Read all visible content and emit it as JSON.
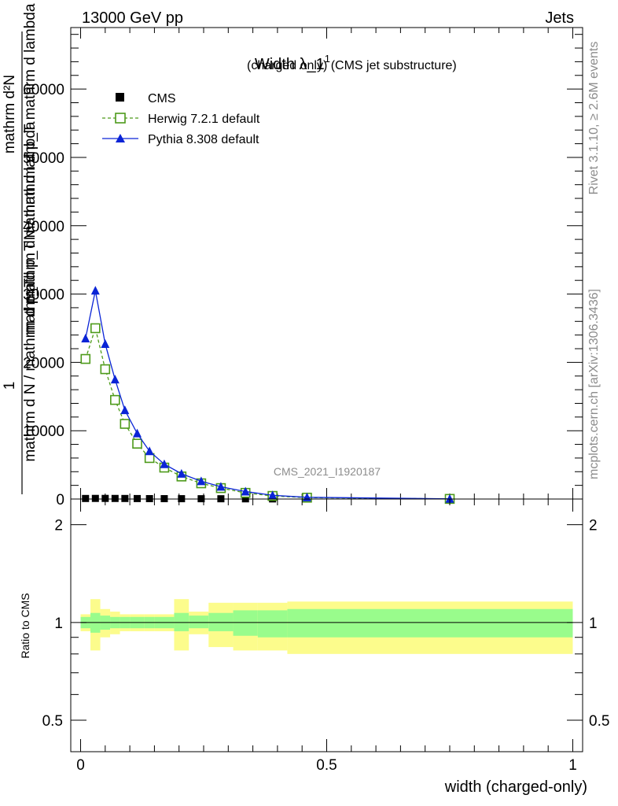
{
  "header": {
    "energy_label": "13000 GeV pp",
    "process_label": "Jets"
  },
  "side_labels": {
    "rivet": "Rivet 3.1.10, ≥ 2.6M events",
    "mcplots": "mcplots.cern.ch [arXiv:1306.3436]"
  },
  "chart_data": [
    {
      "type": "line",
      "title": "Width λ_1",
      "title_superscript": "1",
      "subtitle": "(charged only) (CMS jet substructure)",
      "watermark": "CMS_2021_I1920187",
      "ylabel_fraction_numerator": "1",
      "ylabel_lines": [
        "mathrm dN / mathrm d p_T mathrm d lambda",
        "mathrm d N / mathrm d p_T"
      ],
      "ylabel_raw_top": "mathrm d²N",
      "ylabel_raw_mid": "mathrm d p_T mathrm d lambda",
      "ylabel_raw_bottom": "mathrm d N / mathrm d p_T",
      "xlim": [
        -0.02,
        1.02
      ],
      "ylim": [
        0,
        69000
      ],
      "yticks": [
        0,
        10000,
        20000,
        30000,
        40000,
        50000,
        60000
      ],
      "ytick_labels": [
        "0",
        "10000",
        "20000",
        "30000",
        "40000",
        "50000",
        "60000"
      ],
      "legend_position": "top-left",
      "legend": [
        "CMS",
        "Herwig 7.2.1 default",
        "Pythia 8.308 default"
      ],
      "series": [
        {
          "name": "CMS",
          "color": "#000000",
          "marker": "square",
          "x": [
            0.01,
            0.03,
            0.05,
            0.07,
            0.09,
            0.115,
            0.14,
            0.17,
            0.205,
            0.245,
            0.285,
            0.335,
            0.39,
            0.46,
            0.75
          ],
          "y": [
            80,
            90,
            90,
            85,
            80,
            70,
            60,
            55,
            50,
            45,
            40,
            30,
            20,
            10,
            2
          ]
        },
        {
          "name": "Herwig 7.2.1 default",
          "color": "#4d9a1a",
          "marker": "open-square",
          "dashed": true,
          "x": [
            0.01,
            0.03,
            0.05,
            0.07,
            0.09,
            0.115,
            0.14,
            0.17,
            0.205,
            0.245,
            0.285,
            0.335,
            0.39,
            0.46,
            0.75
          ],
          "y": [
            20500,
            25000,
            19000,
            14500,
            11000,
            8100,
            6000,
            4600,
            3300,
            2300,
            1600,
            900,
            450,
            200,
            20
          ]
        },
        {
          "name": "Pythia 8.308 default",
          "color": "#0a24d6",
          "marker": "filled-triangle",
          "dashed": false,
          "x": [
            0.01,
            0.03,
            0.05,
            0.07,
            0.09,
            0.115,
            0.14,
            0.17,
            0.205,
            0.245,
            0.285,
            0.335,
            0.39,
            0.46,
            0.75
          ],
          "y": [
            23500,
            30500,
            22700,
            17500,
            13000,
            9600,
            7000,
            5100,
            3700,
            2600,
            1800,
            1100,
            550,
            250,
            30
          ]
        }
      ]
    },
    {
      "type": "area",
      "ylabel": "Ratio to CMS",
      "xlabel": "width (charged-only)",
      "xlim": [
        -0.02,
        1.02
      ],
      "ylim": [
        0.4,
        2.4
      ],
      "yticks": [
        0.5,
        1,
        2
      ],
      "ytick_labels": [
        "0.5",
        "1",
        "2"
      ],
      "xticks": [
        0,
        0.5,
        1
      ],
      "xtick_labels": [
        "0",
        "0.5",
        "1"
      ],
      "reference_line": 1,
      "bands": {
        "bin_edges": [
          0,
          0.02,
          0.04,
          0.06,
          0.08,
          0.1,
          0.13,
          0.15,
          0.19,
          0.22,
          0.26,
          0.31,
          0.36,
          0.42,
          0.5,
          1.0
        ],
        "stat_lo": [
          0.96,
          0.93,
          0.95,
          0.96,
          0.96,
          0.96,
          0.96,
          0.96,
          0.94,
          0.96,
          0.94,
          0.91,
          0.9,
          0.9,
          0.9
        ],
        "stat_hi": [
          1.04,
          1.07,
          1.05,
          1.04,
          1.04,
          1.04,
          1.04,
          1.04,
          1.07,
          1.05,
          1.07,
          1.09,
          1.09,
          1.1,
          1.1
        ],
        "total_lo": [
          0.94,
          0.82,
          0.9,
          0.92,
          0.94,
          0.94,
          0.94,
          0.94,
          0.82,
          0.92,
          0.84,
          0.82,
          0.82,
          0.8,
          0.8
        ],
        "total_hi": [
          1.06,
          1.18,
          1.1,
          1.08,
          1.06,
          1.06,
          1.06,
          1.06,
          1.18,
          1.08,
          1.15,
          1.15,
          1.15,
          1.16,
          1.16
        ],
        "stat_color": "#99fc8c",
        "total_color": "#fcfc8c"
      }
    }
  ]
}
